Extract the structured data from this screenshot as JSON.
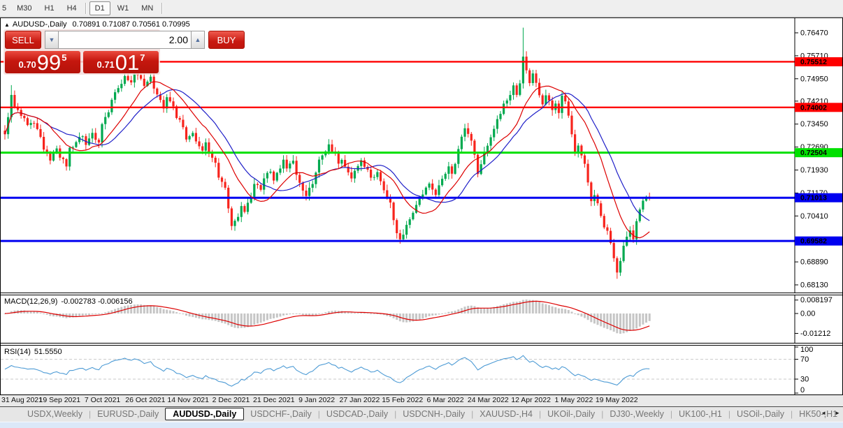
{
  "toolbar": {
    "timeframes": [
      "5",
      "M30",
      "H1",
      "H4",
      "D1",
      "W1",
      "MN"
    ],
    "active": "D1",
    "separators_after": [
      "H4",
      "MN"
    ]
  },
  "icons": {
    "symbol_marker": "▲",
    "spinner_down": "▼",
    "spinner_up": "▲",
    "tabs_scroll_left": "◄",
    "tabs_scroll_right": "►"
  },
  "chart_header": {
    "symbol_label": "AUDUSD-,Daily",
    "ohlc": "0.70891 0.71087 0.70561 0.70995"
  },
  "trade_panel": {
    "sell_label": "SELL",
    "buy_label": "BUY",
    "volume": "2.00",
    "sell_price": {
      "prefix": "0.70",
      "big": "99",
      "sup": "5"
    },
    "buy_price": {
      "prefix": "0.71",
      "big": "01",
      "sup": "7"
    }
  },
  "chart_data": {
    "type": "candlestick",
    "symbol": "AUDUSD-,Daily",
    "y_range": [
      0.7647,
      0.6813
    ],
    "y_ticks": [
      "0.76470",
      "0.75710",
      "0.74950",
      "0.74210",
      "0.73450",
      "0.72690",
      "0.71930",
      "0.71170",
      "0.70410",
      "0.68890",
      "0.68130"
    ],
    "x_labels": [
      "31 Aug 2021",
      "19 Sep 2021",
      "7 Oct 2021",
      "26 Oct 2021",
      "14 Nov 2021",
      "2 Dec 2021",
      "21 Dec 2021",
      "9 Jan 2022",
      "27 Jan 2022",
      "15 Feb 2022",
      "6 Mar 2022",
      "24 Mar 2022",
      "12 Apr 2022",
      "1 May 2022",
      "19 May 2022"
    ],
    "hlines": [
      {
        "name": "resistance-upper",
        "price": 0.75512,
        "label": "0.75512",
        "color": "#ff0000",
        "text_color": "#ffffff",
        "thickness": 2.4
      },
      {
        "name": "resistance-mid",
        "price": 0.74002,
        "label": "0.74002",
        "color": "#ff0000",
        "text_color": "#ffffff",
        "thickness": 2.4
      },
      {
        "name": "support-green",
        "price": 0.72504,
        "label": "0.72504",
        "color": "#00e000",
        "text_color": "#000000",
        "thickness": 3
      },
      {
        "name": "support-mid",
        "price": 0.71013,
        "label": "0.71013",
        "color": "#0000f0",
        "text_color": "#ffffff",
        "thickness": 3
      },
      {
        "name": "support-lower",
        "price": 0.69582,
        "label": "0.69582",
        "color": "#0000f0",
        "text_color": "#ffffff",
        "thickness": 3
      }
    ],
    "candles": {
      "count": 200,
      "up_color": "#00a94f",
      "down_color": "#f7241d",
      "noise": 0.0009,
      "close_keypoints": [
        [
          0,
          0.731
        ],
        [
          2,
          0.744
        ],
        [
          3,
          0.7402
        ],
        [
          5,
          0.7372
        ],
        [
          7,
          0.734
        ],
        [
          9,
          0.7346
        ],
        [
          11,
          0.7302
        ],
        [
          12,
          0.7262
        ],
        [
          14,
          0.7226
        ],
        [
          16,
          0.7266
        ],
        [
          17,
          0.7236
        ],
        [
          19,
          0.7206
        ],
        [
          20,
          0.7266
        ],
        [
          22,
          0.7286
        ],
        [
          24,
          0.7306
        ],
        [
          25,
          0.7276
        ],
        [
          27,
          0.7316
        ],
        [
          29,
          0.7286
        ],
        [
          30,
          0.7346
        ],
        [
          32,
          0.7386
        ],
        [
          33,
          0.7426
        ],
        [
          35,
          0.7466
        ],
        [
          36,
          0.7476
        ],
        [
          37,
          0.7506
        ],
        [
          39,
          0.7481
        ],
        [
          40,
          0.7516
        ],
        [
          42,
          0.7496
        ],
        [
          43,
          0.7471
        ],
        [
          45,
          0.7501
        ],
        [
          46,
          0.7462
        ],
        [
          48,
          0.7426
        ],
        [
          49,
          0.7396
        ],
        [
          50,
          0.7436
        ],
        [
          52,
          0.7406
        ],
        [
          53,
          0.7366
        ],
        [
          55,
          0.7336
        ],
        [
          56,
          0.7296
        ],
        [
          58,
          0.7316
        ],
        [
          59,
          0.7286
        ],
        [
          61,
          0.7256
        ],
        [
          62,
          0.7286
        ],
        [
          63,
          0.7246
        ],
        [
          65,
          0.7216
        ],
        [
          66,
          0.7166
        ],
        [
          68,
          0.7136
        ],
        [
          69,
          0.7066
        ],
        [
          70,
          0.7006
        ],
        [
          72,
          0.7036
        ],
        [
          73,
          0.7076
        ],
        [
          74,
          0.7056
        ],
        [
          76,
          0.7106
        ],
        [
          77,
          0.7146
        ],
        [
          79,
          0.7126
        ],
        [
          80,
          0.7166
        ],
        [
          82,
          0.7186
        ],
        [
          83,
          0.7156
        ],
        [
          84,
          0.7186
        ],
        [
          86,
          0.7226
        ],
        [
          87,
          0.7196
        ],
        [
          89,
          0.7226
        ],
        [
          90,
          0.7176
        ],
        [
          92,
          0.7126
        ],
        [
          93,
          0.7106
        ],
        [
          95,
          0.7146
        ],
        [
          96,
          0.7186
        ],
        [
          97,
          0.7226
        ],
        [
          99,
          0.7256
        ],
        [
          100,
          0.7276
        ],
        [
          102,
          0.7246
        ],
        [
          103,
          0.7216
        ],
        [
          104,
          0.7226
        ],
        [
          106,
          0.7186
        ],
        [
          107,
          0.7166
        ],
        [
          109,
          0.7206
        ],
        [
          110,
          0.7226
        ],
        [
          112,
          0.7196
        ],
        [
          113,
          0.7166
        ],
        [
          115,
          0.7186
        ],
        [
          116,
          0.7156
        ],
        [
          117,
          0.7126
        ],
        [
          119,
          0.7086
        ],
        [
          120,
          0.7026
        ],
        [
          121,
          0.6986
        ],
        [
          122,
          0.6962
        ],
        [
          124,
          0.7012
        ],
        [
          126,
          0.7052
        ],
        [
          127,
          0.7076
        ],
        [
          129,
          0.7112
        ],
        [
          131,
          0.7146
        ],
        [
          133,
          0.7112
        ],
        [
          135,
          0.7162
        ],
        [
          137,
          0.7206
        ],
        [
          138,
          0.7182
        ],
        [
          140,
          0.7262
        ],
        [
          141,
          0.7302
        ],
        [
          142,
          0.7332
        ],
        [
          144,
          0.7292
        ],
        [
          145,
          0.7242
        ],
        [
          146,
          0.7182
        ],
        [
          147,
          0.7212
        ],
        [
          148,
          0.7252
        ],
        [
          150,
          0.7302
        ],
        [
          152,
          0.7362
        ],
        [
          154,
          0.7412
        ],
        [
          156,
          0.7442
        ],
        [
          157,
          0.7472
        ],
        [
          158,
          0.7442
        ],
        [
          159,
          0.7482
        ],
        [
          160,
          0.757
        ],
        [
          161,
          0.7522
        ],
        [
          162,
          0.7482
        ],
        [
          163,
          0.7512
        ],
        [
          164,
          0.7482
        ],
        [
          165,
          0.7442
        ],
        [
          166,
          0.7412
        ],
        [
          167,
          0.7442
        ],
        [
          168,
          0.7422
        ],
        [
          169,
          0.7392
        ],
        [
          170,
          0.7412
        ],
        [
          171,
          0.7382
        ],
        [
          172,
          0.744
        ],
        [
          173,
          0.742
        ],
        [
          174,
          0.7372
        ],
        [
          175,
          0.7312
        ],
        [
          176,
          0.7252
        ],
        [
          177,
          0.7272
        ],
        [
          178,
          0.7242
        ],
        [
          179,
          0.7212
        ],
        [
          180,
          0.7152
        ],
        [
          181,
          0.7092
        ],
        [
          182,
          0.7112
        ],
        [
          183,
          0.7082
        ],
        [
          184,
          0.7042
        ],
        [
          185,
          0.7002
        ],
        [
          186,
          0.6992
        ],
        [
          187,
          0.6952
        ],
        [
          188,
          0.6902
        ],
        [
          189,
          0.6852
        ],
        [
          190,
          0.6892
        ],
        [
          191,
          0.6942
        ],
        [
          192,
          0.6972
        ],
        [
          193,
          0.6992
        ],
        [
          194,
          0.6962
        ],
        [
          195,
          0.7022
        ],
        [
          196,
          0.7062
        ],
        [
          197,
          0.7092
        ],
        [
          198,
          0.7106
        ],
        [
          199,
          0.70995
        ]
      ],
      "wick_overrides": {
        "2": {
          "h": 0.7474
        },
        "40": {
          "h": 0.7539
        },
        "45": {
          "h": 0.753
        },
        "70": {
          "l": 0.6994
        },
        "122": {
          "l": 0.6949
        },
        "160": {
          "h": 0.7664
        },
        "189": {
          "l": 0.6833
        }
      }
    },
    "ma_fast": {
      "period": 13,
      "color": "#dd0000"
    },
    "ma_slow": {
      "period": 21,
      "color": "#1f1fc8"
    },
    "macd": {
      "label": "MACD(12,26,9)",
      "values_text": "-0.002783 -0.006156",
      "axis_labels": [
        "0.008197",
        "0.00",
        "-0.01212"
      ],
      "axis_values": [
        0.008197,
        0,
        -0.01212
      ],
      "hist_color": "#c6c6c6",
      "signal_color": "#dd0000"
    },
    "rsi": {
      "label": "RSI(14)",
      "value_text": "51.5550",
      "axis_labels": [
        "100",
        "70",
        "30",
        "0"
      ],
      "axis_values": [
        100,
        70,
        30,
        0
      ],
      "levels": [
        70,
        30
      ],
      "color": "#4d9bd5",
      "range": [
        0,
        100
      ]
    }
  },
  "tabs": {
    "items": [
      "USDX,Weekly",
      "EURUSD-,Daily",
      "AUDUSD-,Daily",
      "USDCHF-,Daily",
      "USDCAD-,Daily",
      "USDCNH-,Daily",
      "XAUUSD-,H4",
      "UKOil-,Daily",
      "DJ30-,Weekly",
      "UK100-,H1",
      "USOil-,Daily",
      "HK50-,H1"
    ],
    "active_index": 2
  }
}
